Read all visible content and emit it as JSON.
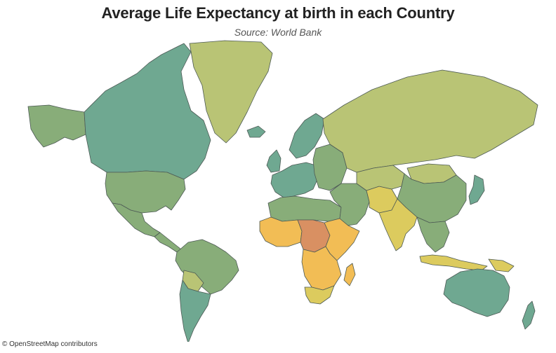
{
  "header": {
    "title": "Average Life Expectancy at birth in each Country",
    "subtitle": "Source: World Bank"
  },
  "footer": {
    "attribution": "© OpenStreetMap contributors"
  },
  "colors": {
    "high": "#6fa891",
    "upper_mid": "#88ad79",
    "mid": "#b9c475",
    "lower_mid": "#dccb5e",
    "low": "#f2bd55",
    "lowest": "#d99062",
    "stroke": "#4d5a55"
  },
  "map": {
    "regions": [
      {
        "name": "canada",
        "shade": "high"
      },
      {
        "name": "usa",
        "shade": "upper_mid"
      },
      {
        "name": "alaska",
        "shade": "upper_mid"
      },
      {
        "name": "mexico",
        "shade": "upper_mid"
      },
      {
        "name": "central-america",
        "shade": "upper_mid"
      },
      {
        "name": "greenland",
        "shade": "mid"
      },
      {
        "name": "south-america-north",
        "shade": "upper_mid"
      },
      {
        "name": "south-america-bolivia",
        "shade": "mid"
      },
      {
        "name": "south-america-south",
        "shade": "high"
      },
      {
        "name": "western-europe",
        "shade": "high"
      },
      {
        "name": "scandinavia",
        "shade": "high"
      },
      {
        "name": "eastern-europe",
        "shade": "upper_mid"
      },
      {
        "name": "russia",
        "shade": "mid"
      },
      {
        "name": "north-africa",
        "shade": "upper_mid"
      },
      {
        "name": "west-africa",
        "shade": "low"
      },
      {
        "name": "central-africa",
        "shade": "lowest"
      },
      {
        "name": "east-africa",
        "shade": "low"
      },
      {
        "name": "southern-africa",
        "shade": "low"
      },
      {
        "name": "south-africa",
        "shade": "lower_mid"
      },
      {
        "name": "middle-east",
        "shade": "upper_mid"
      },
      {
        "name": "iran-afghanistan",
        "shade": "lower_mid"
      },
      {
        "name": "central-asia",
        "shade": "mid"
      },
      {
        "name": "india",
        "shade": "lower_mid"
      },
      {
        "name": "china",
        "shade": "upper_mid"
      },
      {
        "name": "mongolia",
        "shade": "mid"
      },
      {
        "name": "japan",
        "shade": "high"
      },
      {
        "name": "southeast-asia",
        "shade": "upper_mid"
      },
      {
        "name": "indonesia",
        "shade": "lower_mid"
      },
      {
        "name": "papua",
        "shade": "lower_mid"
      },
      {
        "name": "australia",
        "shade": "high"
      },
      {
        "name": "new-zealand",
        "shade": "high"
      },
      {
        "name": "madagascar",
        "shade": "low"
      },
      {
        "name": "iceland",
        "shade": "high"
      },
      {
        "name": "uk",
        "shade": "high"
      }
    ]
  }
}
